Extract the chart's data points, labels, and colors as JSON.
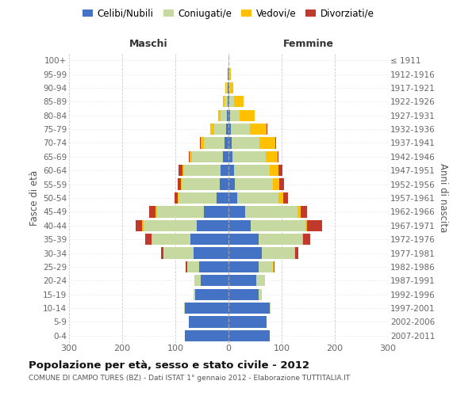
{
  "age_groups": [
    "0-4",
    "5-9",
    "10-14",
    "15-19",
    "20-24",
    "25-29",
    "30-34",
    "35-39",
    "40-44",
    "45-49",
    "50-54",
    "55-59",
    "60-64",
    "65-69",
    "70-74",
    "75-79",
    "80-84",
    "85-89",
    "90-94",
    "95-99",
    "100+"
  ],
  "birth_years": [
    "2007-2011",
    "2002-2006",
    "1997-2001",
    "1992-1996",
    "1987-1991",
    "1982-1986",
    "1977-1981",
    "1972-1976",
    "1967-1971",
    "1962-1966",
    "1957-1961",
    "1952-1956",
    "1947-1951",
    "1942-1946",
    "1937-1941",
    "1932-1936",
    "1927-1931",
    "1922-1926",
    "1917-1921",
    "1912-1916",
    "≤ 1911"
  ],
  "maschi": {
    "celibi": [
      82,
      75,
      82,
      63,
      52,
      55,
      65,
      72,
      60,
      47,
      22,
      16,
      15,
      10,
      8,
      5,
      3,
      2,
      2,
      1,
      0
    ],
    "coniugati": [
      0,
      0,
      1,
      3,
      12,
      22,
      57,
      72,
      100,
      88,
      72,
      72,
      68,
      58,
      38,
      22,
      12,
      6,
      3,
      1,
      0
    ],
    "vedovi": [
      0,
      0,
      0,
      0,
      0,
      1,
      1,
      1,
      2,
      2,
      2,
      2,
      3,
      5,
      6,
      8,
      5,
      3,
      1,
      0,
      0
    ],
    "divorziati": [
      0,
      0,
      0,
      0,
      0,
      2,
      4,
      12,
      12,
      12,
      6,
      6,
      8,
      2,
      1,
      0,
      0,
      0,
      0,
      0,
      0
    ]
  },
  "femmine": {
    "nubili": [
      78,
      72,
      77,
      57,
      52,
      57,
      62,
      57,
      42,
      32,
      16,
      12,
      10,
      8,
      6,
      4,
      3,
      2,
      1,
      0,
      0
    ],
    "coniugate": [
      0,
      0,
      2,
      5,
      17,
      27,
      62,
      82,
      103,
      98,
      78,
      72,
      67,
      62,
      52,
      36,
      18,
      8,
      2,
      1,
      0
    ],
    "vedove": [
      0,
      0,
      0,
      0,
      0,
      1,
      1,
      2,
      3,
      6,
      9,
      12,
      17,
      22,
      30,
      32,
      28,
      18,
      6,
      3,
      0
    ],
    "divorziate": [
      0,
      0,
      0,
      0,
      0,
      1,
      6,
      12,
      28,
      12,
      9,
      8,
      8,
      2,
      1,
      1,
      0,
      0,
      0,
      0,
      0
    ]
  },
  "colors": {
    "celibi_nubili": "#4472c4",
    "coniugati": "#c5d9a0",
    "vedovi": "#ffc000",
    "divorziati": "#c0392b"
  },
  "xlim": 300,
  "title": "Popolazione per età, sesso e stato civile - 2012",
  "subtitle": "COMUNE DI CAMPO TURES (BZ) - Dati ISTAT 1° gennaio 2012 - Elaborazione TUTTITALIA.IT",
  "ylabel_left": "Fasce di età",
  "ylabel_right": "Anni di nascita",
  "xlabel_left": "Maschi",
  "xlabel_right": "Femmine",
  "background_color": "#ffffff",
  "grid_color": "#cccccc"
}
